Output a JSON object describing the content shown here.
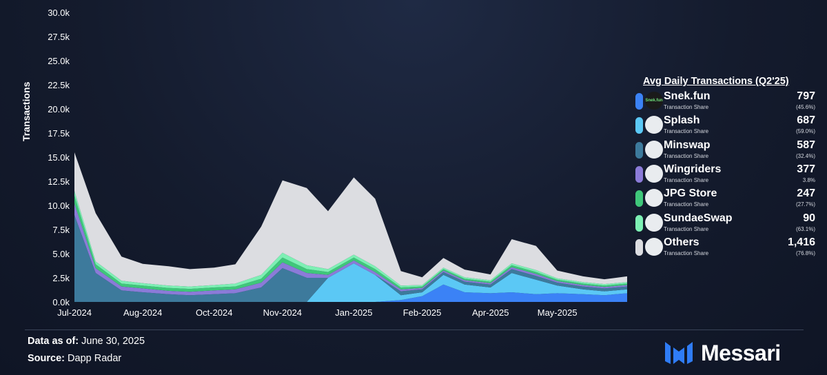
{
  "chart_data": {
    "type": "area",
    "stacked": true,
    "ylabel": "Transactions",
    "ylim": [
      0,
      30000
    ],
    "y_ticks": [
      "0.0k",
      "2.5k",
      "5.0k",
      "7.5k",
      "10.0k",
      "12.5k",
      "15.0k",
      "17.5k",
      "20.0k",
      "22.5k",
      "25.0k",
      "27.5k",
      "30.0k"
    ],
    "x_ticks": [
      "Jul-2024",
      "Aug-2024",
      "Oct-2024",
      "Nov-2024",
      "Jan-2025",
      "Feb-2025",
      "Apr-2025",
      "May-2025"
    ],
    "x_tick_dates": [
      "2024-07-01",
      "2024-08-15",
      "2024-10-01",
      "2024-11-15",
      "2025-01-01",
      "2025-02-15",
      "2025-04-01",
      "2025-05-15"
    ],
    "x_range": [
      "2024-07-01",
      "2025-06-30"
    ],
    "grid": false,
    "x": [
      "2024-07-01",
      "2024-07-15",
      "2024-08-01",
      "2024-08-15",
      "2024-09-01",
      "2024-09-15",
      "2024-10-01",
      "2024-10-15",
      "2024-11-01",
      "2024-11-15",
      "2024-12-01",
      "2024-12-15",
      "2025-01-01",
      "2025-01-15",
      "2025-02-01",
      "2025-02-15",
      "2025-03-01",
      "2025-03-15",
      "2025-04-01",
      "2025-04-15",
      "2025-05-01",
      "2025-05-15",
      "2025-06-01",
      "2025-06-15",
      "2025-06-30"
    ],
    "series": [
      {
        "name": "Snek.fun",
        "color": "#3b82f6",
        "values": [
          0,
          0,
          0,
          0,
          0,
          0,
          0,
          0,
          0,
          0,
          0,
          0,
          0,
          0,
          200,
          600,
          1800,
          1000,
          900,
          1000,
          800,
          900,
          800,
          700,
          900
        ]
      },
      {
        "name": "Splash",
        "color": "#5bc8f5",
        "values": [
          0,
          0,
          0,
          0,
          0,
          0,
          0,
          0,
          0,
          0,
          0,
          2500,
          4000,
          2800,
          500,
          400,
          1000,
          800,
          600,
          2000,
          1500,
          800,
          500,
          400,
          400
        ]
      },
      {
        "name": "Minswap",
        "color": "#3d7a9c",
        "values": [
          9000,
          3000,
          1200,
          1000,
          800,
          700,
          800,
          900,
          1500,
          3500,
          2500,
          0,
          0,
          0,
          400,
          300,
          300,
          300,
          300,
          400,
          400,
          300,
          300,
          300,
          300
        ]
      },
      {
        "name": "Wingriders",
        "color": "#8b7bd8",
        "values": [
          1200,
          500,
          400,
          400,
          350,
          350,
          400,
          400,
          500,
          600,
          500,
          300,
          300,
          300,
          200,
          150,
          150,
          150,
          150,
          200,
          200,
          150,
          150,
          150,
          150
        ]
      },
      {
        "name": "JPG Store",
        "color": "#3fc77a",
        "values": [
          800,
          400,
          300,
          300,
          300,
          300,
          300,
          300,
          400,
          500,
          400,
          300,
          300,
          300,
          200,
          150,
          150,
          150,
          150,
          200,
          200,
          150,
          150,
          150,
          150
        ]
      },
      {
        "name": "SundaeSwap",
        "color": "#7df0b4",
        "values": [
          500,
          300,
          300,
          250,
          250,
          250,
          250,
          300,
          400,
          500,
          400,
          300,
          300,
          300,
          200,
          150,
          150,
          150,
          150,
          200,
          200,
          150,
          150,
          150,
          150
        ]
      },
      {
        "name": "Others",
        "color": "#dcdde1",
        "values": [
          4000,
          5000,
          2500,
          2000,
          2000,
          1800,
          1800,
          2000,
          5000,
          7500,
          8000,
          6000,
          8000,
          7000,
          1500,
          800,
          1000,
          800,
          600,
          2500,
          2500,
          800,
          600,
          500,
          600
        ]
      }
    ]
  },
  "legend": {
    "title": "Avg Daily Transactions (Q2'25)",
    "subtitle": "Transaction Share",
    "items": [
      {
        "name": "Snek.fun",
        "value": "797",
        "share": "(45.6%)",
        "color": "#3b82f6",
        "logo": "Snek.fun"
      },
      {
        "name": "Splash",
        "value": "687",
        "share": "(59.0%)",
        "color": "#5bc8f5",
        "logo": ""
      },
      {
        "name": "Minswap",
        "value": "587",
        "share": "(32.4%)",
        "color": "#3d7a9c",
        "logo": ""
      },
      {
        "name": "Wingriders",
        "value": "377",
        "share": "3.8%",
        "color": "#8b7bd8",
        "logo": ""
      },
      {
        "name": "JPG Store",
        "value": "247",
        "share": "(27.7%)",
        "color": "#3fc77a",
        "logo": ""
      },
      {
        "name": "SundaeSwap",
        "value": "90",
        "share": "(63.1%)",
        "color": "#7df0b4",
        "logo": ""
      },
      {
        "name": "Others",
        "value": "1,416",
        "share": "(76.8%)",
        "color": "#dcdde1",
        "logo": ""
      }
    ]
  },
  "footer": {
    "data_label": "Data as of:",
    "data_value": "June 30, 2025",
    "source_label": "Source:",
    "source_value": "Dapp Radar"
  },
  "brand": {
    "name": "Messari",
    "logo_color": "#2f7cf6"
  }
}
